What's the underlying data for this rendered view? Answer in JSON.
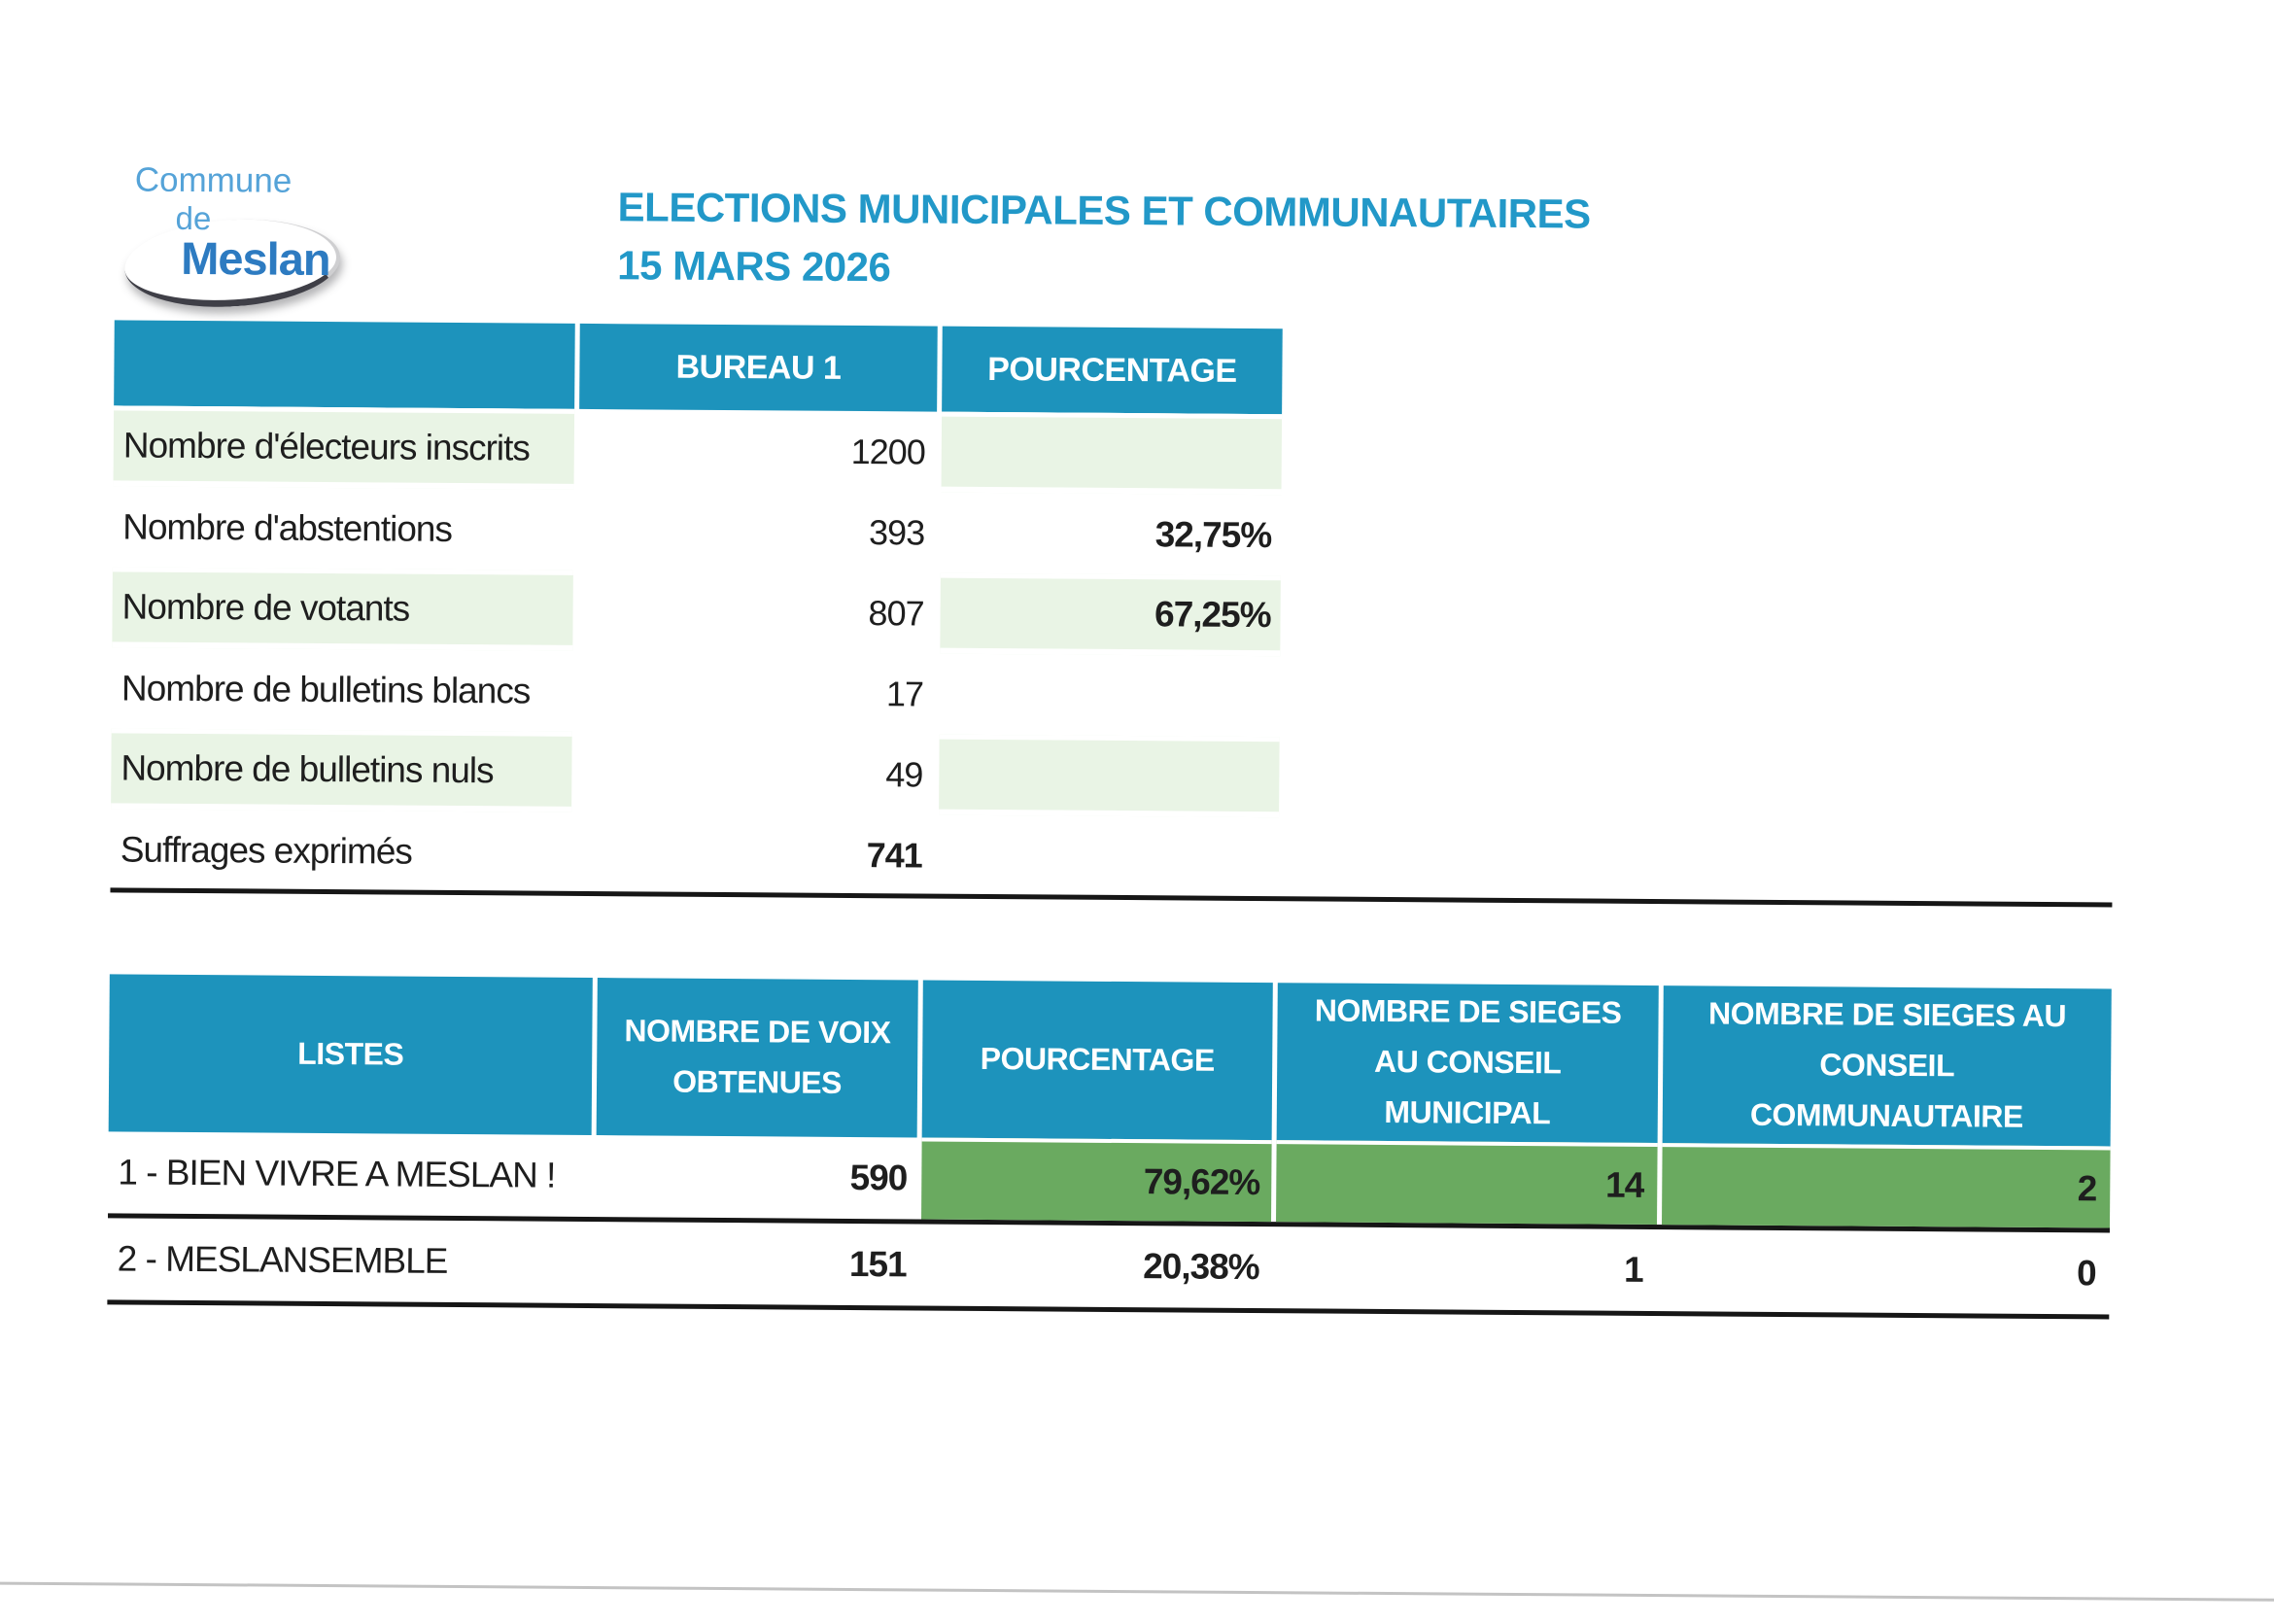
{
  "logo": {
    "line1": "Commune",
    "line2": "de",
    "line3": "Meslan"
  },
  "title": {
    "line1": "ELECTIONS MUNICIPALES ET COMMUNAUTAIRES",
    "line2": "15 MARS 2026"
  },
  "colors": {
    "header_teal": "#1d93bc",
    "title_blue": "#2298c8",
    "row_pale_green": "#e9f4e5",
    "highlight_green": "#6aaa60",
    "logo_light_blue": "#55a3d8",
    "logo_dark_blue": "#2d7bc1"
  },
  "summary_table": {
    "headers": {
      "col2": "BUREAU 1",
      "col3": "POURCENTAGE"
    },
    "rows": [
      {
        "label": "Nombre d'électeurs inscrits",
        "value": "1200",
        "pct": ""
      },
      {
        "label": "Nombre d'abstentions",
        "value": "393",
        "pct": "32,75%"
      },
      {
        "label": "Nombre de votants",
        "value": "807",
        "pct": "67,25%"
      },
      {
        "label": "Nombre de bulletins blancs",
        "value": "17",
        "pct": ""
      },
      {
        "label": "Nombre de bulletins nuls",
        "value": "49",
        "pct": ""
      },
      {
        "label": "Suffrages exprimés",
        "value": "741",
        "pct": ""
      }
    ]
  },
  "results_table": {
    "headers": {
      "col1": "LISTES",
      "col2": "NOMBRE DE VOIX OBTENUES",
      "col3": "POURCENTAGE",
      "col4": "NOMBRE DE SIEGES AU CONSEIL MUNICIPAL",
      "col5": "NOMBRE DE SIEGES AU CONSEIL COMMUNAUTAIRE"
    },
    "rows": [
      {
        "label": "1 - BIEN VIVRE A MESLAN !",
        "votes": "590",
        "pct": "79,62%",
        "seats_municipal": "14",
        "seats_communautaire": "2"
      },
      {
        "label": "2 - MESLANSEMBLE",
        "votes": "151",
        "pct": "20,38%",
        "seats_municipal": "1",
        "seats_communautaire": "0"
      }
    ]
  }
}
